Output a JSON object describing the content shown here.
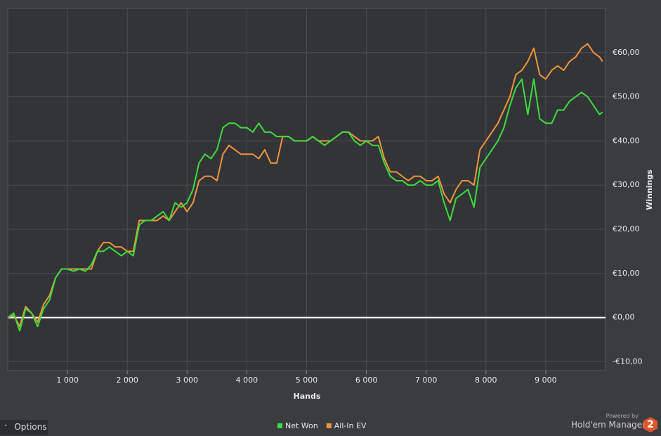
{
  "chart_data": {
    "type": "line",
    "xlabel": "Hands",
    "ylabel": "Winnings",
    "x": [
      0,
      100,
      200,
      300,
      400,
      500,
      600,
      700,
      800,
      900,
      1000,
      1100,
      1200,
      1300,
      1400,
      1500,
      1600,
      1700,
      1800,
      1900,
      2000,
      2100,
      2200,
      2300,
      2400,
      2500,
      2600,
      2700,
      2800,
      2900,
      3000,
      3100,
      3200,
      3300,
      3400,
      3500,
      3600,
      3700,
      3800,
      3900,
      4000,
      4100,
      4200,
      4300,
      4400,
      4500,
      4600,
      4700,
      4800,
      4900,
      5000,
      5100,
      5200,
      5300,
      5400,
      5500,
      5600,
      5700,
      5800,
      5900,
      6000,
      6100,
      6200,
      6300,
      6400,
      6500,
      6600,
      6700,
      6800,
      6900,
      7000,
      7100,
      7200,
      7300,
      7400,
      7500,
      7600,
      7700,
      7800,
      7900,
      8000,
      8100,
      8200,
      8300,
      8400,
      8500,
      8600,
      8700,
      8800,
      8900,
      9000,
      9100,
      9200,
      9300,
      9400,
      9500,
      9600,
      9700,
      9800,
      9900,
      9950
    ],
    "series": [
      {
        "name": "Net Won",
        "color": "#3ddc3d",
        "values": [
          0,
          1,
          -3,
          2,
          1,
          -2,
          2,
          4,
          9,
          11,
          11,
          10.5,
          11,
          10.5,
          12,
          15,
          15,
          16,
          15,
          14,
          15,
          14,
          21,
          22,
          22,
          23,
          24,
          22,
          26,
          25,
          26,
          29,
          35,
          37,
          36,
          38,
          43,
          44,
          44,
          43,
          43,
          42,
          44,
          42,
          42,
          41,
          41,
          41,
          40,
          40,
          40,
          41,
          40,
          39,
          40,
          41,
          42,
          42,
          40,
          39,
          40,
          39,
          39,
          35,
          32,
          31,
          31,
          30,
          30,
          31,
          30,
          30,
          31,
          26,
          22,
          27,
          28,
          29,
          25,
          34,
          36,
          38,
          40,
          43,
          48,
          52,
          54,
          46,
          54,
          45,
          44,
          44,
          47,
          47,
          49,
          50,
          51,
          50,
          48,
          46,
          46.5
        ]
      },
      {
        "name": "All-In EV",
        "color": "#f0943a",
        "values": [
          0,
          0.5,
          -2,
          2.5,
          1,
          -1,
          3,
          5,
          9,
          11,
          11,
          11,
          11,
          11,
          11,
          15,
          17,
          17,
          16,
          16,
          15,
          15,
          22,
          22,
          22,
          22,
          23,
          22,
          24,
          26,
          24,
          26,
          31,
          32,
          32,
          31,
          37,
          39,
          38,
          37,
          37,
          37,
          36,
          38,
          35,
          35,
          41,
          41,
          40,
          40,
          40,
          41,
          40,
          40,
          40,
          41,
          42,
          42,
          41,
          40,
          40,
          40,
          41,
          36,
          33,
          33,
          32,
          31,
          32,
          32,
          31,
          31,
          32,
          28,
          26,
          29,
          31,
          31,
          30,
          38,
          40,
          42,
          44,
          47,
          50,
          55,
          56,
          58,
          61,
          55,
          54,
          56,
          57,
          56,
          58,
          59,
          61,
          62,
          60,
          59,
          58
        ]
      }
    ],
    "xlim": [
      0,
      10000
    ],
    "xticks": [
      {
        "value": 1000,
        "label": "1 000"
      },
      {
        "value": 2000,
        "label": "2 000"
      },
      {
        "value": 3000,
        "label": "3 000"
      },
      {
        "value": 4000,
        "label": "4 000"
      },
      {
        "value": 5000,
        "label": "5 000"
      },
      {
        "value": 6000,
        "label": "6 000"
      },
      {
        "value": 7000,
        "label": "7 000"
      },
      {
        "value": 8000,
        "label": "8 000"
      },
      {
        "value": 9000,
        "label": "9 000"
      }
    ],
    "ylim": [
      -12,
      70
    ],
    "yticks": [
      {
        "value": -10,
        "label": "-€10,00"
      },
      {
        "value": 0,
        "label": "€0,00"
      },
      {
        "value": 10,
        "label": "€10,00"
      },
      {
        "value": 20,
        "label": "€20,00"
      },
      {
        "value": 30,
        "label": "€30,00"
      },
      {
        "value": 40,
        "label": "€40,00"
      },
      {
        "value": 50,
        "label": "€50,00"
      },
      {
        "value": 60,
        "label": "€60,00"
      }
    ],
    "grid": true,
    "legend": "bottom"
  },
  "ui": {
    "options_button": "Options",
    "powered_by": "Powered by",
    "brand": "Hold'em Manager",
    "logo_text": "2"
  }
}
